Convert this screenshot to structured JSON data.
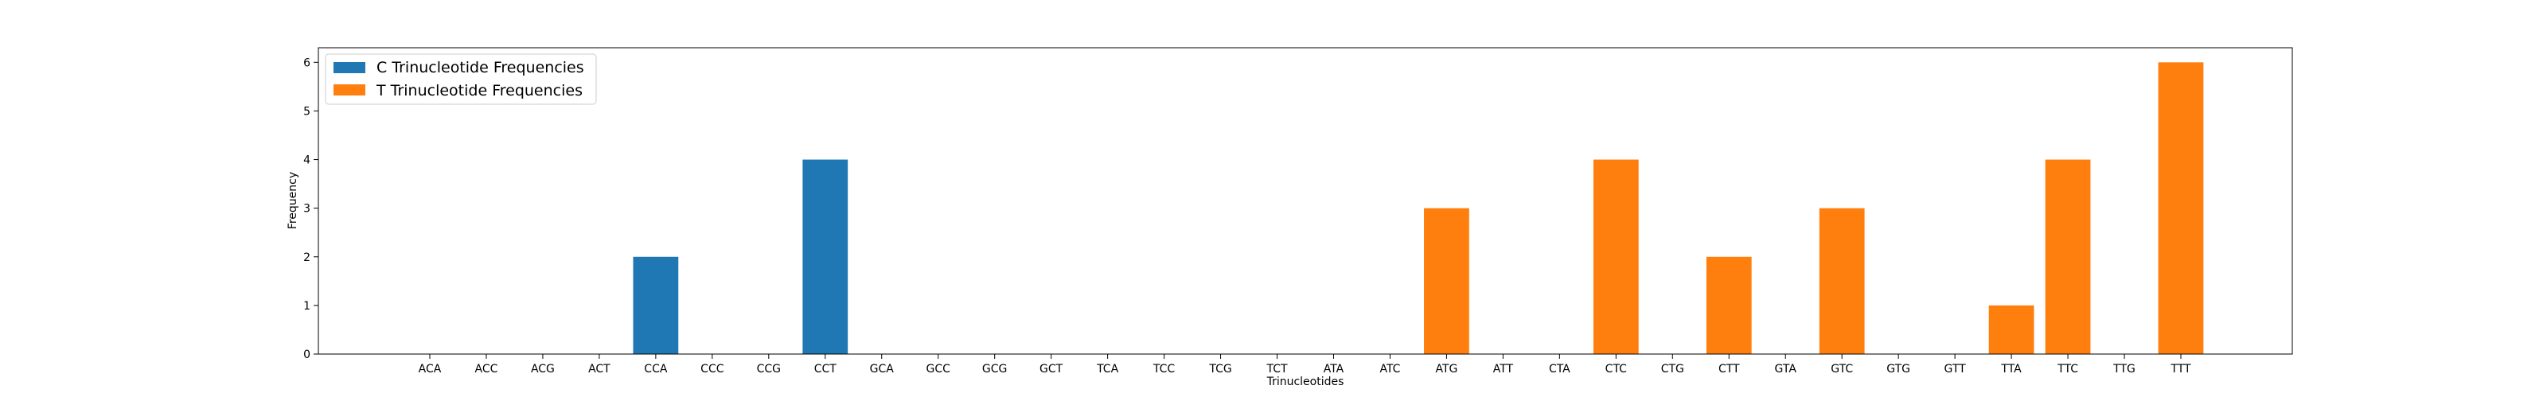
{
  "chart_data": {
    "type": "bar",
    "xlabel": "Trinucleotides",
    "ylabel": "Frequency",
    "ylim": [
      0,
      6.3
    ],
    "yticks": [
      0,
      1,
      2,
      3,
      4,
      5,
      6
    ],
    "categories": [
      "ACA",
      "ACC",
      "ACG",
      "ACT",
      "CCA",
      "CCC",
      "CCG",
      "CCT",
      "GCA",
      "GCC",
      "GCG",
      "GCT",
      "TCA",
      "TCC",
      "TCG",
      "TCT",
      "ATA",
      "ATC",
      "ATG",
      "ATT",
      "CTA",
      "CTC",
      "CTG",
      "CTT",
      "GTA",
      "GTC",
      "GTG",
      "GTT",
      "TTA",
      "TTC",
      "TTG",
      "TTT"
    ],
    "series": [
      {
        "name": "C Trinucleotide Frequencies",
        "color": "#1f77b4",
        "values": [
          0,
          0,
          0,
          0,
          2,
          0,
          0,
          4,
          0,
          0,
          0,
          0,
          0,
          0,
          0,
          0,
          null,
          null,
          null,
          null,
          null,
          null,
          null,
          null,
          null,
          null,
          null,
          null,
          null,
          null,
          null,
          null
        ]
      },
      {
        "name": "T Trinucleotide Frequencies",
        "color": "#ff7f0e",
        "values": [
          null,
          null,
          null,
          null,
          null,
          null,
          null,
          null,
          null,
          null,
          null,
          null,
          null,
          null,
          null,
          null,
          0,
          0,
          3,
          0,
          0,
          4,
          0,
          2,
          0,
          3,
          0,
          0,
          1,
          4,
          0,
          6
        ]
      }
    ],
    "legend_position": "upper-left",
    "grid": false
  }
}
